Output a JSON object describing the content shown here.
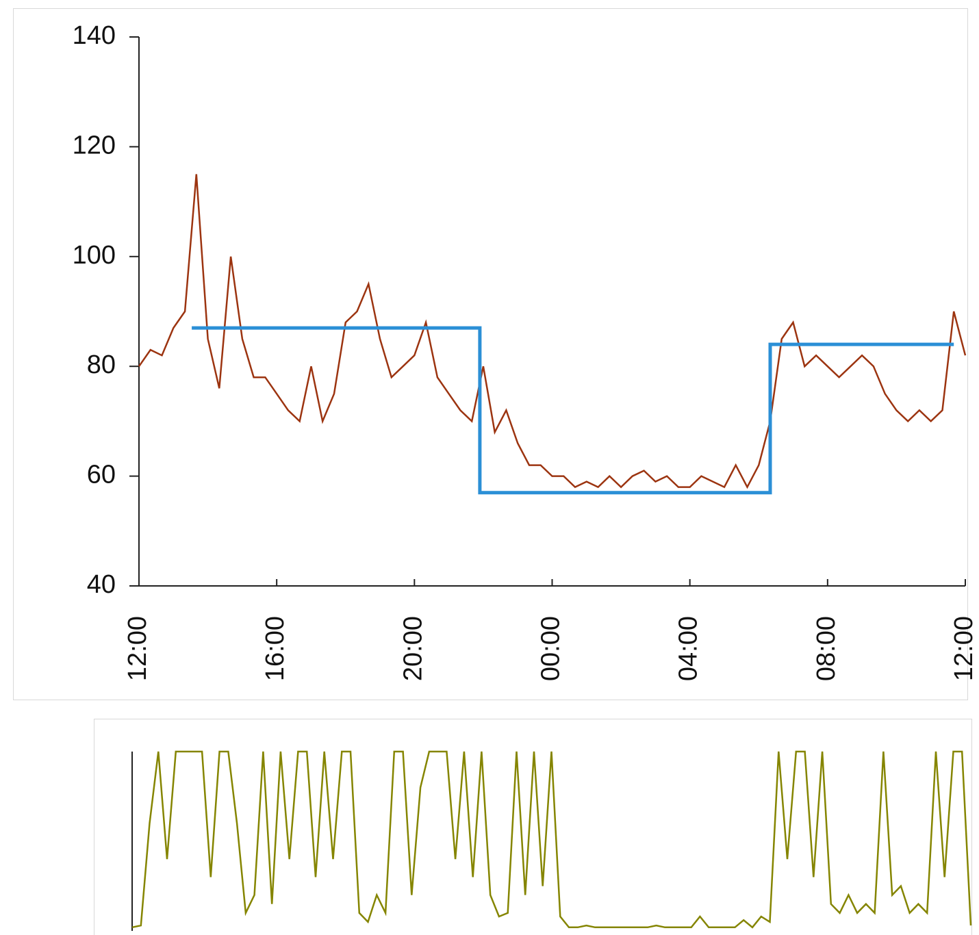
{
  "chart_data": [
    {
      "type": "line",
      "xlim": [
        0,
        1440
      ],
      "xticks": [
        {
          "value": 0,
          "label": "12:00"
        },
        {
          "value": 240,
          "label": "16:00"
        },
        {
          "value": 480,
          "label": "20:00"
        },
        {
          "value": 720,
          "label": "00:00"
        },
        {
          "value": 960,
          "label": "04:00"
        },
        {
          "value": 1200,
          "label": "08:00"
        },
        {
          "value": 1440,
          "label": "12:00"
        }
      ],
      "ylim": [
        40,
        140
      ],
      "yticks": [
        40,
        60,
        80,
        100,
        120,
        140
      ],
      "series": [
        {
          "color": "#9c3410",
          "x": [
            0,
            20,
            40,
            60,
            80,
            100,
            120,
            140,
            160,
            180,
            200,
            220,
            240,
            260,
            280,
            300,
            320,
            340,
            360,
            380,
            400,
            420,
            440,
            460,
            480,
            500,
            520,
            540,
            560,
            580,
            600,
            620,
            640,
            660,
            680,
            700,
            720,
            740,
            760,
            780,
            800,
            820,
            840,
            860,
            880,
            900,
            920,
            940,
            960,
            980,
            1000,
            1020,
            1040,
            1060,
            1080,
            1100,
            1120,
            1140,
            1160,
            1180,
            1200,
            1220,
            1240,
            1260,
            1280,
            1300,
            1320,
            1340,
            1360,
            1380,
            1400,
            1420,
            1440
          ],
          "values": [
            80,
            83,
            82,
            87,
            90,
            115,
            85,
            76,
            100,
            85,
            78,
            78,
            75,
            72,
            70,
            80,
            70,
            75,
            88,
            90,
            95,
            85,
            78,
            80,
            82,
            88,
            78,
            75,
            72,
            70,
            80,
            68,
            72,
            66,
            62,
            62,
            60,
            60,
            58,
            59,
            58,
            60,
            58,
            60,
            61,
            59,
            60,
            58,
            58,
            60,
            59,
            58,
            62,
            58,
            62,
            70,
            85,
            88,
            80,
            82,
            80,
            78,
            80,
            82,
            80,
            75,
            72,
            70,
            72,
            70,
            72,
            90,
            82
          ]
        },
        {
          "color": "#2b8fd6",
          "x": [
            92,
            594,
            594,
            1100,
            1100,
            1420
          ],
          "values": [
            87,
            87,
            57,
            57,
            84,
            84
          ]
        }
      ]
    },
    {
      "type": "line",
      "xlim": [
        0,
        1440
      ],
      "ylim": [
        0,
        100
      ],
      "series": [
        {
          "color": "#858500",
          "x": [
            0,
            15,
            30,
            45,
            60,
            75,
            90,
            105,
            120,
            135,
            150,
            165,
            180,
            195,
            210,
            225,
            240,
            255,
            270,
            285,
            300,
            315,
            330,
            345,
            360,
            375,
            390,
            405,
            420,
            435,
            450,
            465,
            480,
            495,
            510,
            525,
            540,
            555,
            570,
            585,
            600,
            615,
            630,
            645,
            660,
            675,
            690,
            705,
            720,
            735,
            750,
            765,
            780,
            795,
            810,
            825,
            840,
            855,
            870,
            885,
            900,
            915,
            930,
            945,
            960,
            975,
            990,
            1005,
            1020,
            1035,
            1050,
            1065,
            1080,
            1095,
            1110,
            1125,
            1140,
            1155,
            1170,
            1185,
            1200,
            1215,
            1230,
            1245,
            1260,
            1275,
            1290,
            1305,
            1320,
            1335,
            1350,
            1365,
            1380,
            1395,
            1410,
            1425,
            1440
          ],
          "values": [
            2,
            3,
            60,
            100,
            40,
            100,
            100,
            100,
            100,
            30,
            100,
            100,
            60,
            10,
            20,
            100,
            15,
            100,
            40,
            100,
            100,
            30,
            100,
            40,
            100,
            100,
            10,
            5,
            20,
            10,
            100,
            100,
            20,
            80,
            100,
            100,
            100,
            40,
            100,
            30,
            100,
            20,
            8,
            10,
            100,
            20,
            100,
            25,
            100,
            8,
            2,
            2,
            3,
            2,
            2,
            2,
            2,
            2,
            2,
            2,
            3,
            2,
            2,
            2,
            2,
            8,
            2,
            2,
            2,
            2,
            6,
            2,
            8,
            5,
            100,
            40,
            100,
            100,
            30,
            100,
            15,
            10,
            20,
            10,
            15,
            10,
            100,
            20,
            25,
            10,
            15,
            10,
            100,
            30,
            100,
            100,
            3
          ]
        }
      ]
    }
  ]
}
